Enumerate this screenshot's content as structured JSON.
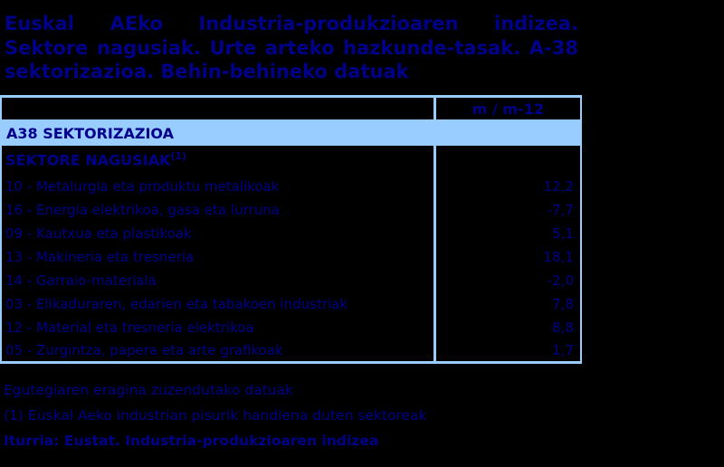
{
  "colors": {
    "background": "#000000",
    "text_navy": "#00008B",
    "light_blue": "#99CCFF"
  },
  "title": {
    "line1": "Euskal AEko Industria-produkzioaren indizea.",
    "line2": "Sektore nagusiak. Urte arteko hazkunde-tasak. A-38",
    "line3": "sektorizazioa. Behin-behineko datuak"
  },
  "table": {
    "header": {
      "value_column": "m / m-12"
    },
    "section_header": "A38 SEKTORIZAZIOA",
    "group_header": {
      "label": "SEKTORE NAGUSIAK",
      "superscript": "(1)"
    },
    "rows": [
      {
        "label": "10 - Metalurgia eta produktu metalikoak",
        "value": "12,2"
      },
      {
        "label": "16 - Energia elektrikoa, gasa eta lurruna",
        "value": "-7,7"
      },
      {
        "label": "09 - Kautxua eta plastikoak",
        "value": "5,1"
      },
      {
        "label": "13 - Makineria eta tresneria",
        "value": "18,1"
      },
      {
        "label": "14 - Garraio-materiala",
        "value": "-2,0"
      },
      {
        "label": "03 - Elikaduraren, edarien eta tabakoen industriak",
        "value": "7,8"
      },
      {
        "label": "12 - Material eta tresneria elektrikoa",
        "value": "8,8"
      },
      {
        "label": "05 - Zurgintza, papera eta arte grafikoak",
        "value": "1,7"
      }
    ]
  },
  "footnotes": {
    "note1": "Egutegiaren eragina zuzendutako datuak",
    "note2": "(1) Euskal Aeko industrian pisurik handiena duten sektoreak",
    "source": "Iturria: Eustat. Industria-produkzioaren indizea"
  },
  "chart_data": {
    "type": "table",
    "title": "Euskal AEko Industria-produkzioaren indizea. Sektore nagusiak. Urte arteko hazkunde-tasak. A-38 sektorizazioa. Behin-behineko datuak",
    "columns": [
      "A38 SEKTORIZAZIOA",
      "m / m-12"
    ],
    "section": "SEKTORE NAGUSIAK (1)",
    "categories": [
      "10 - Metalurgia eta produktu metalikoak",
      "16 - Energia elektrikoa, gasa eta lurruna",
      "09 - Kautxua eta plastikoak",
      "13 - Makineria eta tresneria",
      "14 - Garraio-materiala",
      "03 - Elikaduraren, edarien eta tabakoen industriak",
      "12 - Material eta tresneria elektrikoa",
      "05 - Zurgintza, papera eta arte grafikoak"
    ],
    "values": [
      12.2,
      -7.7,
      5.1,
      18.1,
      -2.0,
      7.8,
      8.8,
      1.7
    ],
    "notes": [
      "Egutegiaren eragina zuzendutako datuak",
      "(1) Euskal Aeko industrian pisurik handiena duten sektoreak",
      "Iturria: Eustat. Industria-produkzioaren indizea"
    ]
  }
}
